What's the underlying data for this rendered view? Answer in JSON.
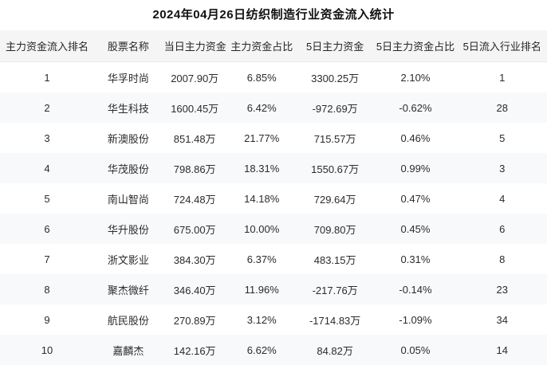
{
  "page": {
    "title": "2024年04月26日纺织制造行业资金流入统计"
  },
  "colors": {
    "header_background": "#f5f5f6",
    "alt_row_background": "#f8f9fa",
    "header_border": "#e9e9e9",
    "text": "#2b2b2b",
    "title_text": "#111111"
  },
  "table": {
    "headers": [
      "主力资金流入排名",
      "股票名称",
      "当日主力资金",
      "主力资金占比",
      "5日主力资金",
      "5日主力资金占比",
      "5日流入行业排名"
    ],
    "rows": [
      [
        "1",
        "华孚时尚",
        "2007.90万",
        "6.85%",
        "3300.25万",
        "2.10%",
        "1"
      ],
      [
        "2",
        "华生科技",
        "1600.45万",
        "6.42%",
        "-972.69万",
        "-0.62%",
        "28"
      ],
      [
        "3",
        "新澳股份",
        "851.48万",
        "21.77%",
        "715.57万",
        "0.46%",
        "5"
      ],
      [
        "4",
        "华茂股份",
        "798.86万",
        "18.31%",
        "1550.67万",
        "0.99%",
        "3"
      ],
      [
        "5",
        "南山智尚",
        "724.48万",
        "14.18%",
        "729.64万",
        "0.47%",
        "4"
      ],
      [
        "6",
        "华升股份",
        "675.00万",
        "10.00%",
        "709.80万",
        "0.45%",
        "6"
      ],
      [
        "7",
        "浙文影业",
        "384.30万",
        "6.37%",
        "483.15万",
        "0.31%",
        "8"
      ],
      [
        "8",
        "聚杰微纤",
        "346.40万",
        "11.96%",
        "-217.76万",
        "-0.14%",
        "23"
      ],
      [
        "9",
        "航民股份",
        "270.89万",
        "3.12%",
        "-1714.83万",
        "-1.09%",
        "34"
      ],
      [
        "10",
        "嘉麟杰",
        "142.16万",
        "6.62%",
        "84.82万",
        "0.05%",
        "14"
      ]
    ]
  }
}
